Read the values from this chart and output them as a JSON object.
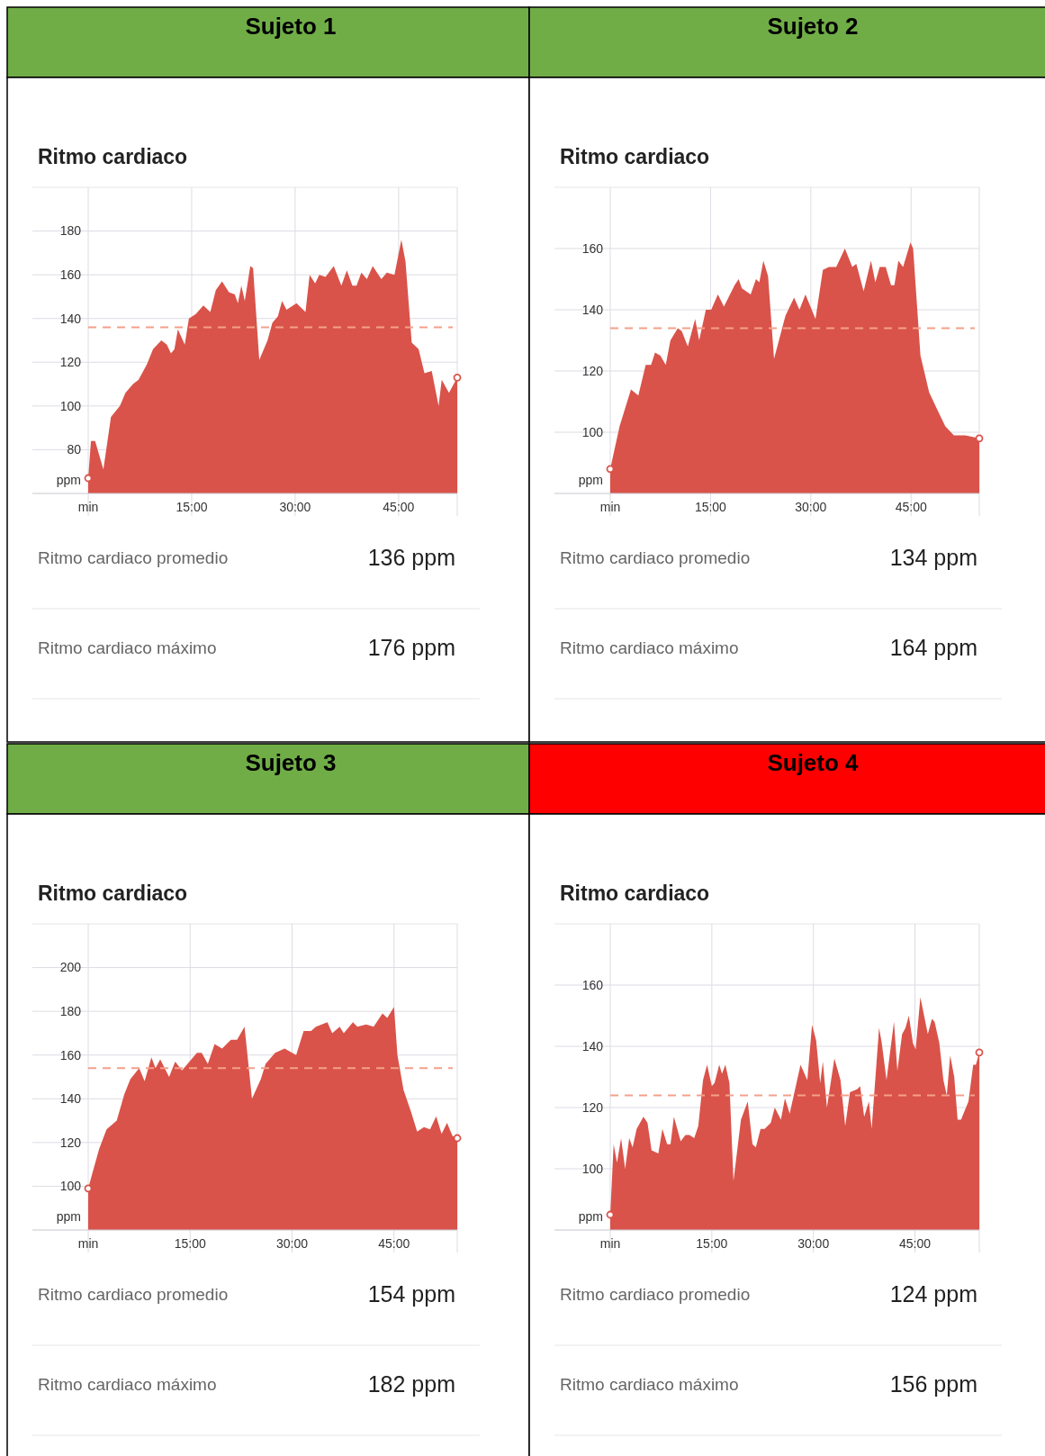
{
  "chart_data": [
    {
      "type": "area",
      "title": "Sujeto 1",
      "subtitle": "Ritmo cardiaco",
      "ylabel": "ppm",
      "xlim": [
        0,
        53.5
      ],
      "ylim": [
        60,
        200
      ],
      "xticks": [
        {
          "value": 0,
          "label": "min"
        },
        {
          "value": 15,
          "label": "15:00"
        },
        {
          "value": 30,
          "label": "30:00"
        },
        {
          "value": 45,
          "label": "45:00"
        }
      ],
      "yticks": [
        80,
        100,
        120,
        140,
        160,
        180
      ],
      "grid": true,
      "series": [
        {
          "color": "#d9534a",
          "x": [
            0,
            0.4,
            1,
            2.2,
            3.3,
            4.6,
            5.4,
            6.5,
            7.3,
            8.5,
            9.4,
            10.6,
            11.4,
            12,
            12.5,
            13,
            14,
            14.6,
            15.6,
            16.7,
            17.7,
            18.5,
            19.4,
            20.4,
            21.25,
            21.7,
            22.2,
            22.7,
            23.5,
            23.9,
            24.8,
            26,
            26.7,
            27.5,
            28.1,
            28.75,
            30.2,
            31.5,
            32.1,
            32.9,
            33.5,
            34.4,
            35.6,
            36.7,
            37.5,
            38.3,
            38.9,
            39.6,
            40.4,
            41.25,
            42.5,
            43.3,
            44.4,
            45.4,
            46,
            46.9,
            47.9,
            48.75,
            49.8,
            50.8,
            51.25,
            52.3,
            53.5
          ],
          "values": [
            67,
            84,
            84,
            71,
            95,
            100,
            106,
            110,
            112,
            119,
            126,
            130,
            128,
            124,
            126,
            135,
            128,
            140,
            142,
            146,
            143,
            153,
            157,
            152,
            151,
            147,
            155,
            148,
            164,
            163,
            121,
            130,
            138,
            141,
            148,
            144,
            147,
            143,
            160,
            156,
            160,
            159,
            164,
            155,
            162,
            155,
            155,
            161,
            158,
            164,
            158,
            161,
            160,
            176,
            166,
            129,
            126,
            115,
            116,
            100,
            112,
            106,
            113
          ]
        }
      ],
      "ref_lines": [
        {
          "axis": "y",
          "value": 136,
          "color": "#f4a08a",
          "line_style": "dashed"
        }
      ],
      "annotations": [
        "Ritmo cardiaco promedio",
        "136 ppm",
        "Ritmo cardiaco máximo",
        "176 ppm"
      ]
    },
    {
      "type": "area",
      "title": "Sujeto 2",
      "subtitle": "Ritmo cardiaco",
      "ylabel": "ppm",
      "xlim": [
        0,
        55.2
      ],
      "ylim": [
        80,
        180
      ],
      "xticks": [
        {
          "value": 0,
          "label": "min"
        },
        {
          "value": 15,
          "label": "15:00"
        },
        {
          "value": 30,
          "label": "30:00"
        },
        {
          "value": 45,
          "label": "45:00"
        }
      ],
      "yticks": [
        100,
        120,
        140,
        160
      ],
      "grid": true,
      "series": [
        {
          "color": "#d9534a",
          "x": [
            0,
            1.4,
            3.1,
            4.2,
            5.3,
            6.1,
            6.7,
            7.5,
            8.3,
            9,
            10.1,
            10.7,
            11.6,
            12.7,
            13.3,
            14.3,
            15.1,
            16.1,
            17,
            18.6,
            19.2,
            19.7,
            21,
            21.8,
            22.3,
            22.9,
            23.6,
            24.5,
            26.2,
            27.5,
            28.3,
            29.2,
            30.7,
            31.8,
            32.7,
            33.8,
            35.1,
            36.2,
            36.8,
            37.9,
            39,
            39.65,
            40.3,
            41.2,
            42,
            42.5,
            43.1,
            43.8,
            44.9,
            45.3,
            46.4,
            47.7,
            49,
            50.1,
            51.4,
            53.1,
            55.2
          ],
          "values": [
            88,
            102,
            114,
            112,
            122,
            122,
            126,
            125,
            122,
            130,
            134,
            133,
            128,
            137,
            130,
            140,
            140,
            145,
            141,
            148,
            150,
            147,
            145,
            150,
            149,
            156,
            151,
            124,
            138,
            144,
            140,
            145,
            137,
            153,
            154,
            154,
            160,
            154,
            155,
            146,
            156,
            149,
            154,
            154,
            148,
            148,
            156,
            154,
            162,
            160,
            125,
            113,
            107,
            102,
            99,
            99,
            98
          ]
        }
      ],
      "ref_lines": [
        {
          "axis": "y",
          "value": 134,
          "color": "#f4a08a",
          "line_style": "dashed"
        }
      ],
      "annotations": [
        "Ritmo cardiaco promedio",
        "134 ppm",
        "Ritmo cardiaco máximo",
        "164 ppm"
      ]
    },
    {
      "type": "area",
      "title": "Sujeto 3",
      "subtitle": "Ritmo cardiaco",
      "ylabel": "ppm",
      "xlim": [
        0,
        54.3
      ],
      "ylim": [
        80,
        220
      ],
      "xticks": [
        {
          "value": 0,
          "label": "min"
        },
        {
          "value": 15,
          "label": "15:00"
        },
        {
          "value": 30,
          "label": "30:00"
        },
        {
          "value": 45,
          "label": "45:00"
        }
      ],
      "yticks": [
        100,
        120,
        140,
        160,
        180,
        200
      ],
      "grid": true,
      "series": [
        {
          "color": "#d9534a",
          "x": [
            0,
            0.7,
            1.6,
            2.7,
            4.2,
            5.3,
            6.2,
            7.5,
            8.3,
            9.3,
            9.9,
            10.6,
            11.9,
            12.8,
            13.8,
            14.9,
            16,
            16.7,
            17.6,
            18.6,
            19.7,
            21,
            21.9,
            23,
            24.1,
            25.4,
            26.1,
            27.5,
            28.9,
            30.6,
            31.7,
            32.8,
            33.5,
            35.2,
            35.9,
            37,
            37.6,
            38.95,
            39.6,
            40.9,
            42,
            43.3,
            44,
            45,
            45.5,
            46.4,
            47.5,
            48.4,
            49.4,
            50.3,
            51.2,
            52,
            52.8,
            53.6,
            54.3
          ],
          "values": [
            99,
            107,
            117,
            126,
            130,
            142,
            149,
            154,
            148,
            159,
            154,
            158,
            150,
            157,
            153,
            157,
            161,
            161,
            156,
            165,
            163,
            167,
            167,
            173,
            140,
            149,
            156,
            161,
            163,
            160,
            171,
            171,
            173,
            175,
            170,
            173,
            170,
            175,
            173,
            174,
            173,
            179,
            177,
            182,
            160,
            144,
            134,
            125,
            127,
            126,
            132,
            124,
            129,
            123,
            122
          ]
        }
      ],
      "ref_lines": [
        {
          "axis": "y",
          "value": 154,
          "color": "#f4a08a",
          "line_style": "dashed"
        }
      ],
      "annotations": [
        "Ritmo cardiaco promedio",
        "154 ppm",
        "Ritmo cardiaco máximo",
        "182 ppm"
      ]
    },
    {
      "type": "area",
      "title": "Sujeto 4",
      "subtitle": "Ritmo cardiaco",
      "ylabel": "ppm",
      "xlim": [
        0,
        54.5
      ],
      "ylim": [
        80,
        180
      ],
      "xticks": [
        {
          "value": 0,
          "label": "min"
        },
        {
          "value": 15,
          "label": "15:00"
        },
        {
          "value": 30,
          "label": "30:00"
        },
        {
          "value": 45,
          "label": "45:00"
        }
      ],
      "yticks": [
        100,
        120,
        140,
        160
      ],
      "grid": true,
      "series": [
        {
          "color": "#d9534a",
          "x": [
            0,
            0.5,
            1,
            1.6,
            2.2,
            2.8,
            3.3,
            3.9,
            4.9,
            5.5,
            6.1,
            7.1,
            7.7,
            8.4,
            8.9,
            9.4,
            10.4,
            11.1,
            11.7,
            12.4,
            13,
            13.7,
            14.3,
            15,
            15.4,
            16.1,
            16.5,
            17,
            17.6,
            18.2,
            19.3,
            20.3,
            21,
            21.5,
            22.2,
            22.8,
            23.7,
            24.3,
            25.2,
            25.8,
            26.5,
            27.4,
            28.1,
            29.1,
            29.8,
            30.4,
            31,
            31.4,
            32,
            33.1,
            34,
            34.7,
            35.4,
            36.5,
            36.9,
            37.5,
            38.2,
            38.6,
            39.7,
            40.1,
            40.8,
            41.9,
            42.4,
            43.1,
            43.6,
            44.1,
            44.7,
            45.1,
            45.8,
            46.9,
            47.5,
            47.9,
            48.6,
            49.2,
            49.7,
            50.2,
            50.8,
            51.3,
            51.8,
            52.9,
            53.6,
            54,
            54.5
          ],
          "values": [
            85,
            108,
            102,
            110,
            100,
            110,
            107,
            113,
            117,
            115,
            106,
            105,
            113,
            108,
            108,
            117,
            109,
            111,
            111,
            110,
            114,
            129,
            134,
            127,
            128,
            134,
            131,
            134,
            128,
            96,
            116,
            122,
            108,
            107,
            113,
            113,
            115,
            120,
            116,
            123,
            118,
            127,
            134,
            129,
            147,
            142,
            128,
            135,
            120,
            136,
            129,
            114,
            125,
            126,
            127,
            117,
            122,
            113,
            146,
            141,
            129,
            148,
            132,
            144,
            146,
            150,
            141,
            139,
            156,
            144,
            149,
            148,
            141,
            129,
            124,
            137,
            130,
            116,
            116,
            122,
            134,
            134,
            138
          ]
        }
      ],
      "ref_lines": [
        {
          "axis": "y",
          "value": 124,
          "color": "#f4a08a",
          "line_style": "dashed"
        }
      ],
      "annotations": [
        "Ritmo cardiaco promedio",
        "124 ppm",
        "Ritmo cardiaco máximo",
        "156 ppm"
      ]
    }
  ]
}
